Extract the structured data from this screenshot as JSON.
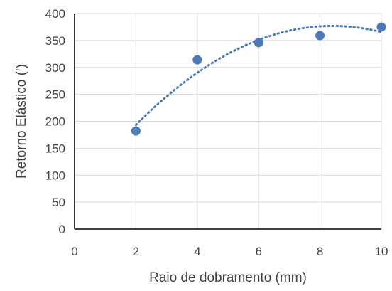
{
  "chart_data": {
    "type": "scatter",
    "title": "",
    "xlabel": "Raio de dobramento (mm)",
    "ylabel": "Retorno Elástico (')",
    "xlim": [
      0,
      10
    ],
    "ylim": [
      0,
      400
    ],
    "x_ticks": [
      0,
      2,
      4,
      6,
      8,
      10
    ],
    "y_ticks": [
      0,
      50,
      100,
      150,
      200,
      250,
      300,
      350,
      400
    ],
    "grid": {
      "horizontal": true,
      "vertical": true
    },
    "legend": "none",
    "series": [
      {
        "x": [
          2,
          4,
          6,
          8,
          10
        ],
        "y": [
          182,
          314,
          346,
          359,
          375
        ],
        "color": "#4a7ab8",
        "marker": "circle"
      }
    ],
    "trendline": {
      "type": "polynomial",
      "order": 2,
      "style": "dotted",
      "color": "#4a7ab8",
      "x_range": [
        2,
        10
      ]
    }
  }
}
